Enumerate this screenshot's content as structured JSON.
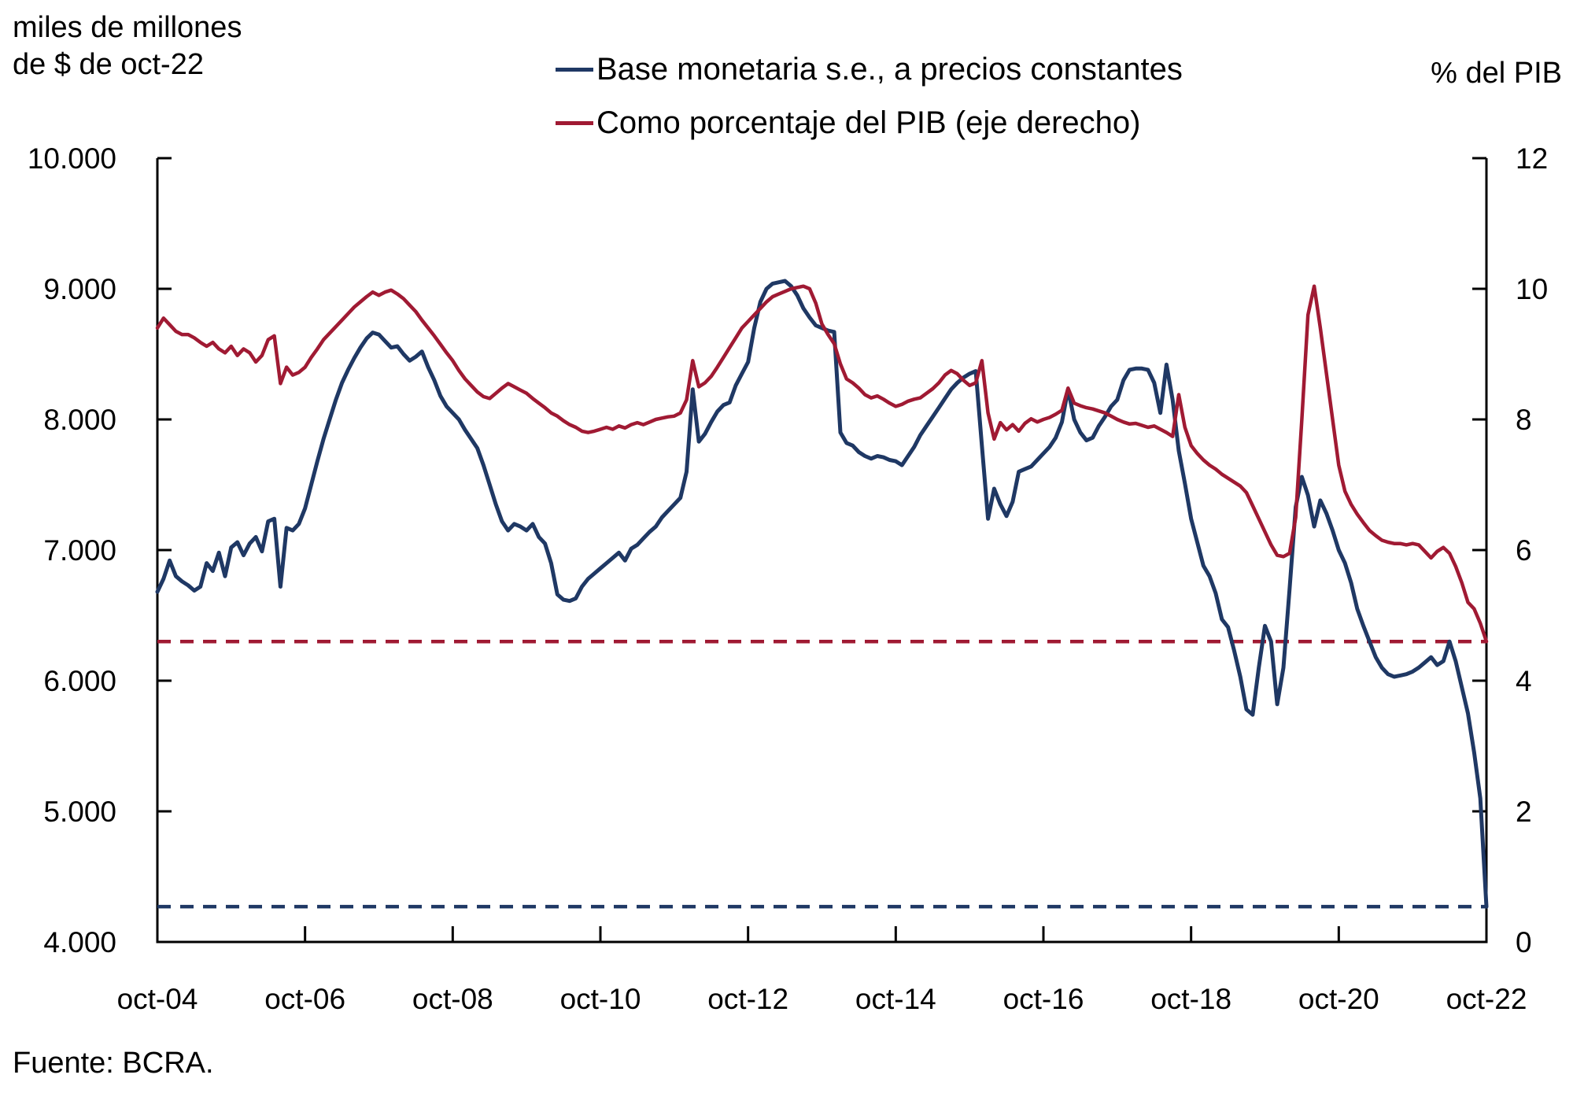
{
  "left_axis_title": {
    "line1": "miles de millones",
    "line2": "de $ de oct-22"
  },
  "right_axis_title": "% del PIB",
  "legend": {
    "items": [
      {
        "label": "Base monetaria s.e., a precios constantes",
        "color": "#1F3864"
      },
      {
        "label": "Como porcentaje del PIB (eje derecho)",
        "color": "#A01A33"
      }
    ]
  },
  "source": "Fuente: BCRA.",
  "colors": {
    "navy": "#1F3864",
    "crimson": "#A01A33",
    "axis": "#000000",
    "background": "#FFFFFF"
  },
  "chart_data": {
    "type": "line",
    "title": "",
    "xlabel": "",
    "frequency": "monthly",
    "x_start": "oct-04",
    "x_end": "oct-22",
    "x_tick_labels": [
      "oct-04",
      "oct-06",
      "oct-08",
      "oct-10",
      "oct-12",
      "oct-14",
      "oct-16",
      "oct-18",
      "oct-20",
      "oct-22"
    ],
    "grid": false,
    "legend_position": "top",
    "left_axis": {
      "label": "miles de millones de $ de oct-22",
      "range": [
        4000,
        10000
      ],
      "tick_values": [
        10000,
        9000,
        8000,
        7000,
        6000,
        5000,
        4000
      ],
      "tick_labels": [
        "10.000",
        "9.000",
        "8.000",
        "7.000",
        "6.000",
        "5.000",
        "4.000"
      ]
    },
    "right_axis": {
      "label": "% del PIB",
      "range": [
        0,
        12
      ],
      "tick_values": [
        12,
        10,
        8,
        6,
        4,
        2,
        0
      ],
      "tick_labels": [
        "12",
        "10",
        "8",
        "6",
        "4",
        "2",
        "0"
      ]
    },
    "series": [
      {
        "name": "Base monetaria s.e., a precios constantes",
        "axis": "left",
        "color": "#1F3864",
        "style": "solid",
        "values": [
          6680,
          6780,
          6920,
          6800,
          6760,
          6730,
          6690,
          6720,
          6900,
          6840,
          6980,
          6800,
          7020,
          7060,
          6960,
          7050,
          7100,
          6990,
          7220,
          7240,
          6720,
          7170,
          7150,
          7200,
          7320,
          7500,
          7680,
          7850,
          8000,
          8150,
          8280,
          8380,
          8470,
          8550,
          8620,
          8665,
          8650,
          8600,
          8550,
          8560,
          8500,
          8450,
          8480,
          8520,
          8400,
          8300,
          8180,
          8100,
          8050,
          8000,
          7920,
          7850,
          7780,
          7650,
          7500,
          7350,
          7220,
          7150,
          7200,
          7180,
          7150,
          7200,
          7100,
          7050,
          6900,
          6660,
          6620,
          6610,
          6630,
          6720,
          6780,
          6820,
          6860,
          6900,
          6940,
          6980,
          6920,
          7010,
          7040,
          7090,
          7140,
          7180,
          7250,
          7300,
          7350,
          7400,
          7600,
          8230,
          7830,
          7890,
          7980,
          8060,
          8110,
          8130,
          8260,
          8350,
          8440,
          8700,
          8900,
          9000,
          9040,
          9050,
          9060,
          9020,
          8950,
          8850,
          8780,
          8720,
          8700,
          8680,
          8670,
          7900,
          7820,
          7800,
          7750,
          7720,
          7700,
          7720,
          7710,
          7690,
          7680,
          7650,
          7720,
          7790,
          7880,
          7950,
          8020,
          8090,
          8160,
          8230,
          8280,
          8320,
          8350,
          8370,
          7800,
          7240,
          7470,
          7350,
          7260,
          7370,
          7600,
          7620,
          7640,
          7690,
          7740,
          7790,
          7860,
          7980,
          8230,
          8000,
          7900,
          7840,
          7860,
          7950,
          8020,
          8100,
          8150,
          8300,
          8380,
          8390,
          8390,
          8380,
          8280,
          8050,
          8420,
          8150,
          7760,
          7510,
          7240,
          7060,
          6880,
          6800,
          6670,
          6470,
          6410,
          6230,
          6030,
          5780,
          5740,
          6100,
          6420,
          6300,
          5820,
          6100,
          6700,
          7330,
          7560,
          7420,
          7180,
          7380,
          7280,
          7150,
          7000,
          6900,
          6750,
          6550,
          6420,
          6300,
          6180,
          6100,
          6050,
          6030,
          6040,
          6050,
          6070,
          6100,
          6140,
          6180,
          6120,
          6150,
          6300,
          6150,
          5950,
          5750,
          5450,
          5100,
          4270
        ]
      },
      {
        "name": "Como porcentaje del PIB (eje derecho)",
        "axis": "right",
        "color": "#A01A33",
        "style": "solid",
        "values": [
          9.4,
          9.55,
          9.45,
          9.35,
          9.3,
          9.3,
          9.25,
          9.18,
          9.12,
          9.18,
          9.08,
          9.02,
          9.12,
          8.98,
          9.08,
          9.02,
          8.88,
          8.98,
          9.22,
          9.28,
          8.55,
          8.8,
          8.68,
          8.72,
          8.8,
          8.95,
          9.08,
          9.22,
          9.32,
          9.42,
          9.52,
          9.62,
          9.72,
          9.8,
          9.88,
          9.95,
          9.9,
          9.95,
          9.98,
          9.92,
          9.85,
          9.75,
          9.65,
          9.52,
          9.4,
          9.28,
          9.15,
          9.02,
          8.9,
          8.75,
          8.62,
          8.52,
          8.42,
          8.35,
          8.32,
          8.4,
          8.48,
          8.55,
          8.5,
          8.45,
          8.4,
          8.32,
          8.25,
          8.18,
          8.1,
          8.05,
          7.98,
          7.92,
          7.88,
          7.82,
          7.8,
          7.82,
          7.85,
          7.88,
          7.85,
          7.9,
          7.87,
          7.92,
          7.95,
          7.92,
          7.96,
          8.0,
          8.02,
          8.04,
          8.05,
          8.1,
          8.3,
          8.9,
          8.5,
          8.56,
          8.66,
          8.8,
          8.95,
          9.1,
          9.25,
          9.4,
          9.5,
          9.6,
          9.7,
          9.8,
          9.88,
          9.92,
          9.96,
          10.0,
          10.02,
          10.04,
          10.0,
          9.78,
          9.46,
          9.3,
          9.16,
          8.85,
          8.62,
          8.56,
          8.48,
          8.38,
          8.33,
          8.36,
          8.31,
          8.25,
          8.2,
          8.23,
          8.28,
          8.31,
          8.33,
          8.4,
          8.47,
          8.56,
          8.68,
          8.75,
          8.7,
          8.6,
          8.52,
          8.56,
          8.9,
          8.1,
          7.7,
          7.95,
          7.84,
          7.92,
          7.82,
          7.94,
          8.01,
          7.96,
          8.0,
          8.03,
          8.08,
          8.14,
          8.48,
          8.25,
          8.21,
          8.18,
          8.16,
          8.13,
          8.1,
          8.05,
          8.0,
          7.96,
          7.93,
          7.94,
          7.91,
          7.88,
          7.9,
          7.85,
          7.8,
          7.74,
          8.38,
          7.88,
          7.6,
          7.48,
          7.38,
          7.3,
          7.24,
          7.16,
          7.1,
          7.04,
          6.98,
          6.88,
          6.68,
          6.48,
          6.28,
          6.08,
          5.92,
          5.9,
          5.95,
          6.5,
          8.0,
          9.6,
          10.04,
          9.4,
          8.7,
          8.0,
          7.3,
          6.9,
          6.7,
          6.55,
          6.42,
          6.3,
          6.22,
          6.15,
          6.12,
          6.1,
          6.1,
          6.08,
          6.1,
          6.08,
          5.98,
          5.88,
          5.98,
          6.04,
          5.95,
          5.75,
          5.5,
          5.2,
          5.1,
          4.88,
          4.6
        ]
      }
    ],
    "reference_lines": [
      {
        "name": "nivel oct-22 de la base monetaria real",
        "axis": "left",
        "value": 4270,
        "color": "#1F3864",
        "style": "dashed"
      },
      {
        "name": "nivel oct-22 como % del PIB",
        "axis": "right",
        "value": 4.6,
        "color": "#A01A33",
        "style": "dashed"
      }
    ]
  }
}
